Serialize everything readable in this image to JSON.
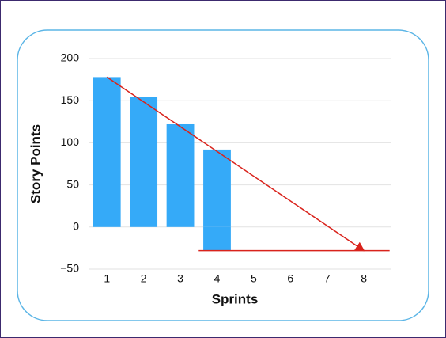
{
  "chart_data": {
    "type": "bar",
    "x_label": "Sprints",
    "y_label": "Story Points",
    "categories": [
      1,
      2,
      3,
      4,
      5,
      6,
      7,
      8
    ],
    "series": [
      {
        "color": "#35aaf8",
        "values": [
          178,
          154,
          122,
          92,
          null,
          null,
          null,
          null
        ]
      },
      {
        "color": "#35aaf8",
        "values": [
          null,
          null,
          null,
          -28,
          null,
          null,
          null,
          null
        ]
      }
    ],
    "xlim": [
      0.5,
      8.75
    ],
    "ylim": [
      -50,
      200
    ],
    "yticks": [
      {
        "value": -50,
        "label": "−50"
      },
      0,
      50,
      100,
      150,
      200
    ],
    "grid": true,
    "trend_line": {
      "color": "#d9231c",
      "x": [
        1,
        8
      ],
      "y": [
        178,
        -28
      ]
    },
    "hline": {
      "color": "#d9231c",
      "y": -28,
      "x": [
        3.5,
        8.7
      ]
    }
  }
}
